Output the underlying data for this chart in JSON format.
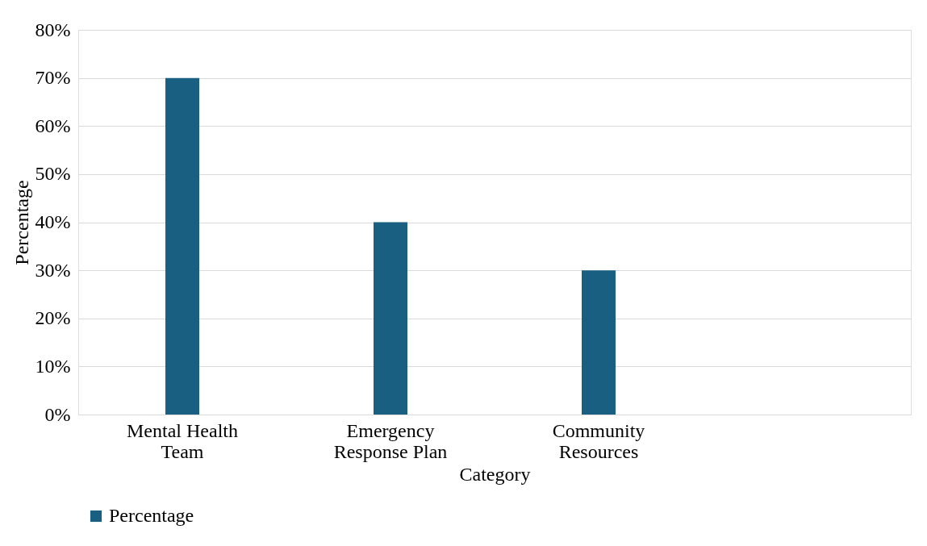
{
  "chart_data": {
    "type": "bar",
    "xlabel": "Category",
    "ylabel": "Percentage",
    "categories": [
      "Mental Health Team",
      "Emergency Response Plan",
      "Community Resources",
      null
    ],
    "series": [
      {
        "name": "Percentage",
        "color": "#185f82",
        "values": [
          70,
          40,
          30,
          null
        ]
      }
    ],
    "ylim": [
      0,
      80
    ],
    "yticks": [
      {
        "value": 0,
        "label": "0%"
      },
      {
        "value": 10,
        "label": "10%"
      },
      {
        "value": 20,
        "label": "20%"
      },
      {
        "value": 30,
        "label": "30%"
      },
      {
        "value": 40,
        "label": "40%"
      },
      {
        "value": 50,
        "label": "50%"
      },
      {
        "value": 60,
        "label": "60%"
      },
      {
        "value": 70,
        "label": "70%"
      },
      {
        "value": 80,
        "label": "80%"
      }
    ],
    "grid": "y",
    "legend": "bottom"
  }
}
